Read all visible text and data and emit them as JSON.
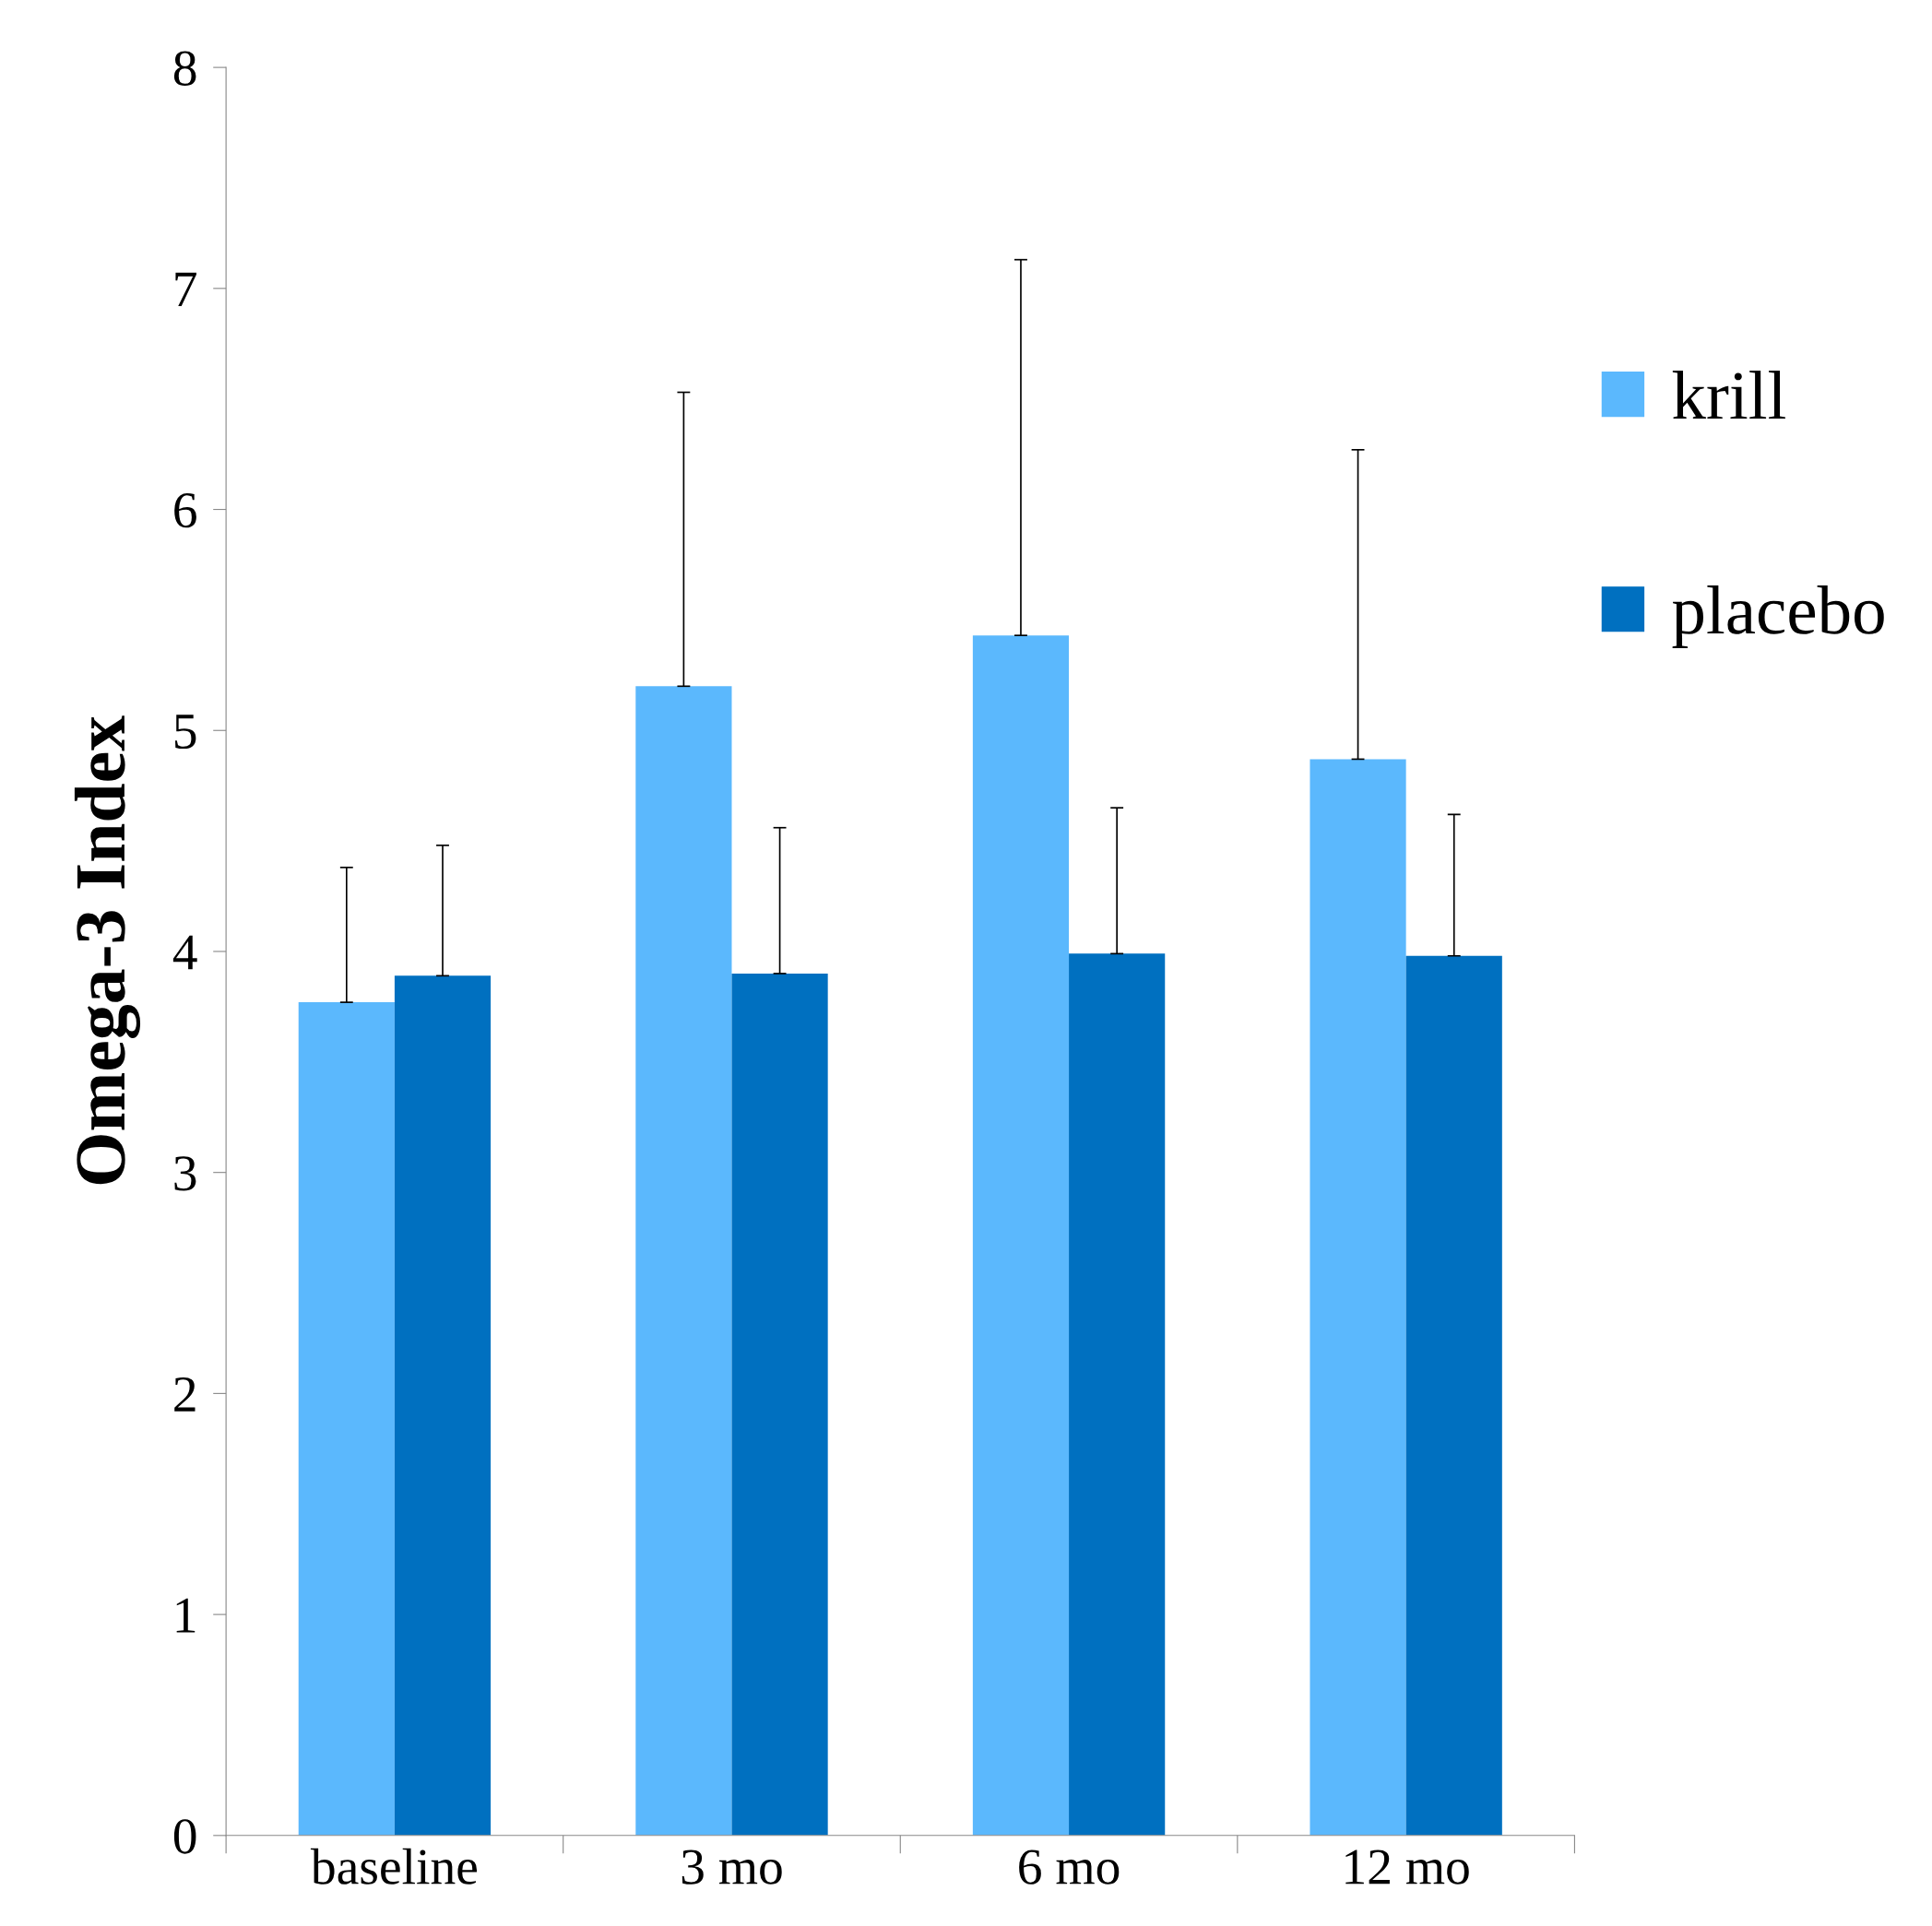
{
  "chart_data": {
    "type": "bar",
    "ylabel": "Omega-3 Index",
    "categories": [
      "baseline",
      "3 mo",
      "6 mo",
      "12 mo"
    ],
    "series": [
      {
        "name": "krill",
        "color": "#5bb8fd",
        "values": [
          3.77,
          5.2,
          5.43,
          4.87
        ],
        "errors": [
          [
            3.77,
            4.38
          ],
          [
            5.2,
            6.53
          ],
          [
            5.43,
            7.13
          ],
          [
            4.87,
            6.27
          ]
        ]
      },
      {
        "name": "placebo",
        "color": "#0070c0",
        "values": [
          3.89,
          3.9,
          3.99,
          3.98
        ],
        "errors": [
          [
            3.89,
            4.48
          ],
          [
            3.9,
            4.56
          ],
          [
            3.99,
            4.65
          ],
          [
            3.98,
            4.62
          ]
        ]
      }
    ],
    "ylim": [
      0,
      8
    ],
    "yticks": [
      0,
      1,
      2,
      3,
      4,
      5,
      6,
      7,
      8
    ],
    "grid": false,
    "legend": "right"
  }
}
